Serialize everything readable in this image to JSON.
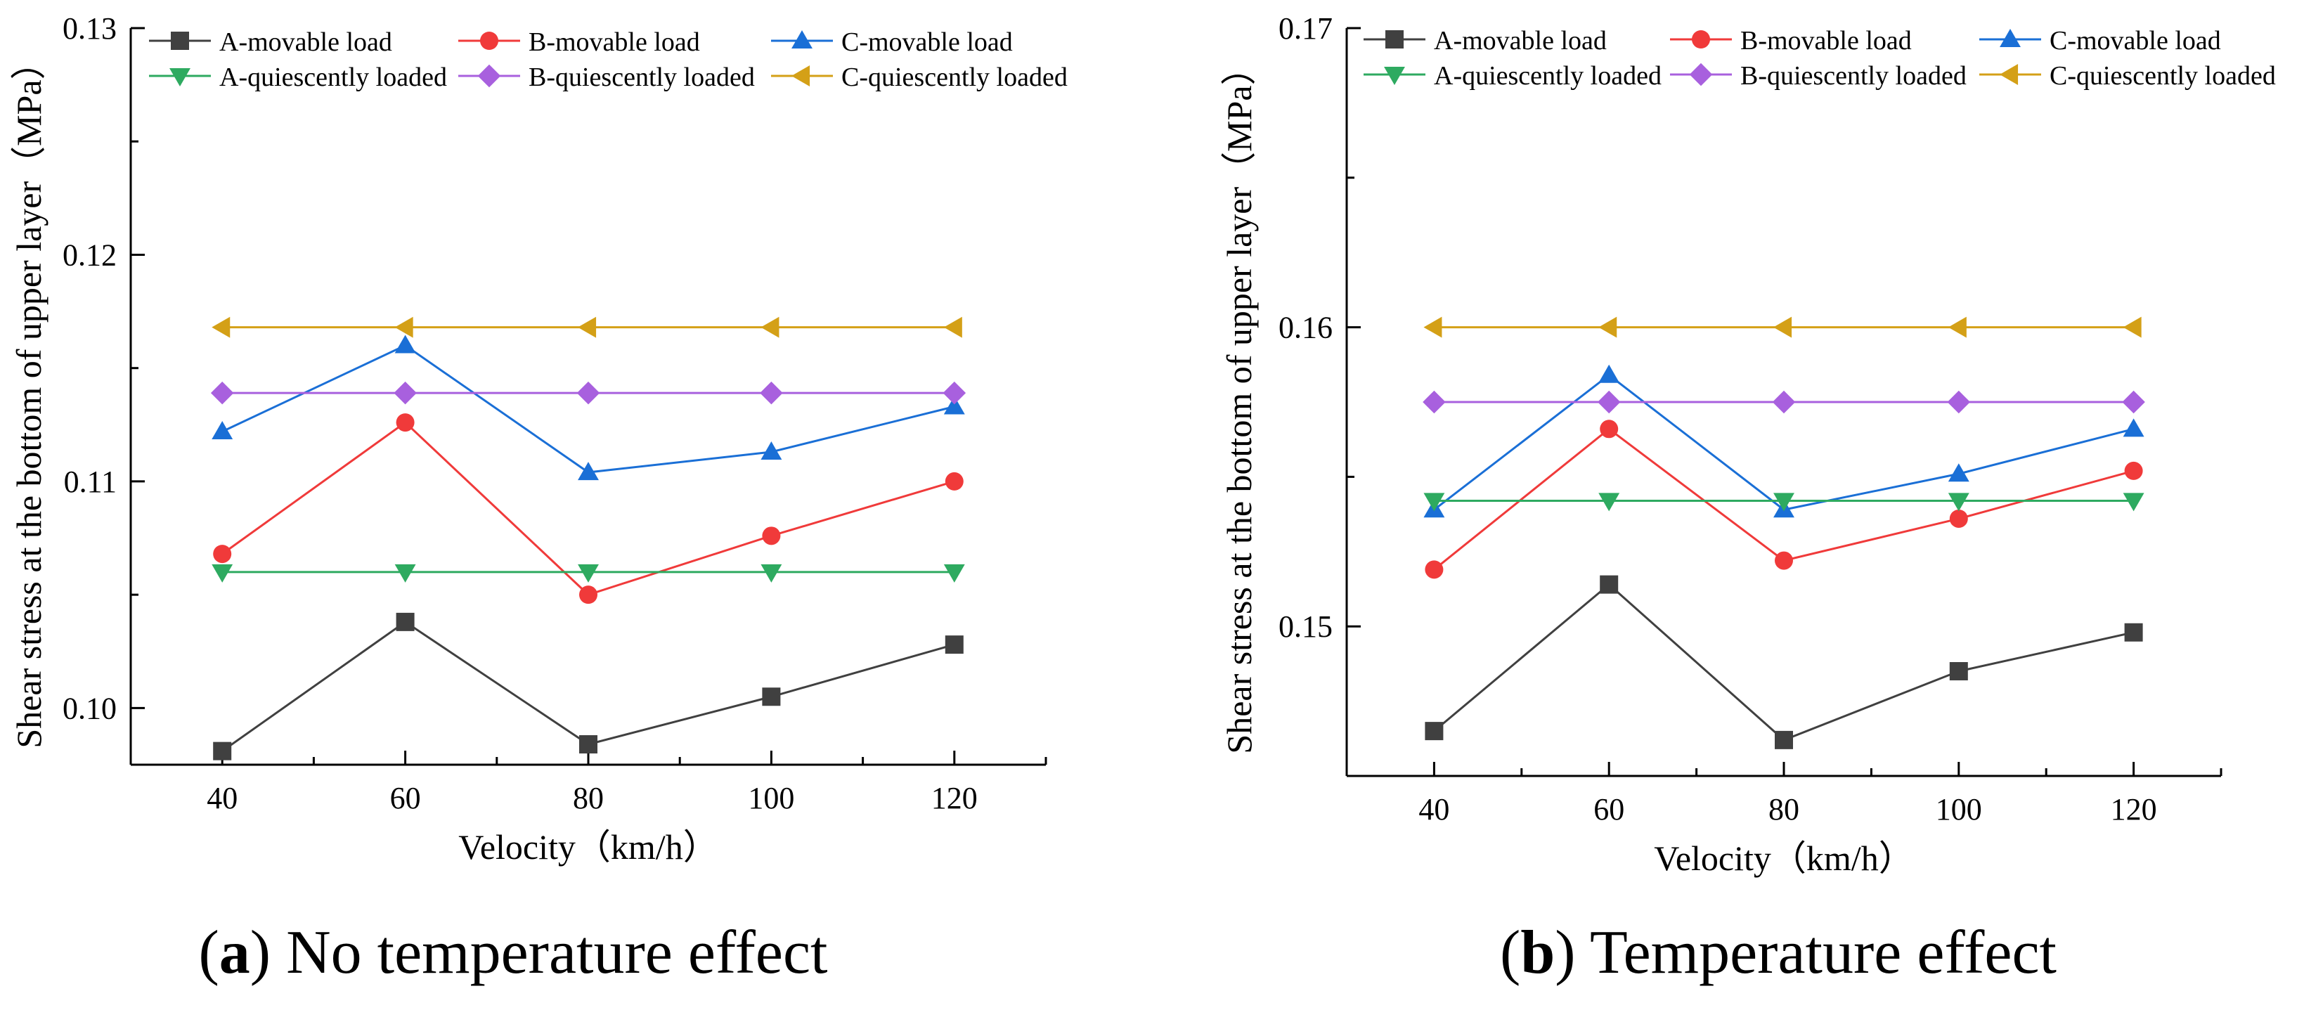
{
  "chart_data": [
    {
      "type": "line",
      "panel_id": "a",
      "caption": {
        "open": "(",
        "letter": "a",
        "close": ")",
        "text": " No temperature effect"
      },
      "xlabel": "Velocity（km/h）",
      "ylabel": "Shear stress at the bottom of upper layer（MPa）",
      "x": [
        40,
        60,
        80,
        100,
        120
      ],
      "x_ticks": [
        40,
        60,
        80,
        100,
        120
      ],
      "x_tick_labels": [
        "40",
        "60",
        "80",
        "100",
        "120"
      ],
      "xlim": [
        30,
        130
      ],
      "y_ticks": [
        0.1,
        0.11,
        0.12,
        0.13
      ],
      "y_tick_labels": [
        "0.10",
        "0.11",
        "0.12",
        "0.13"
      ],
      "ylim": [
        0.0975,
        0.13
      ],
      "legend_position": "top",
      "series": [
        {
          "name": "A-movable load",
          "marker": "square",
          "color": "#404040",
          "values": [
            0.0981,
            0.1038,
            0.0984,
            0.1005,
            0.1028
          ]
        },
        {
          "name": "B-movable load",
          "marker": "circle",
          "color": "#f03a3a",
          "values": [
            0.1068,
            0.1126,
            0.105,
            0.1076,
            0.11
          ]
        },
        {
          "name": "C-movable load",
          "marker": "triangle-up",
          "color": "#1a6fd6",
          "values": [
            0.1122,
            0.116,
            0.1104,
            0.1113,
            0.1133
          ]
        },
        {
          "name": "A-quiescently loaded",
          "marker": "triangle-down",
          "color": "#2eaa60",
          "values": [
            0.106,
            0.106,
            0.106,
            0.106,
            0.106
          ]
        },
        {
          "name": "B-quiescently loaded",
          "marker": "diamond",
          "color": "#a860de",
          "values": [
            0.1139,
            0.1139,
            0.1139,
            0.1139,
            0.1139
          ]
        },
        {
          "name": "C-quiescently loaded",
          "marker": "triangle-left",
          "color": "#d4a017",
          "values": [
            0.1168,
            0.1168,
            0.1168,
            0.1168,
            0.1168
          ]
        }
      ]
    },
    {
      "type": "line",
      "panel_id": "b",
      "caption": {
        "open": "(",
        "letter": "b",
        "close": ")",
        "text": " Temperature effect"
      },
      "xlabel": "Velocity（km/h）",
      "ylabel": "Shear stress at the bottom of upper layer（MPa）",
      "x": [
        40,
        60,
        80,
        100,
        120
      ],
      "x_ticks": [
        40,
        60,
        80,
        100,
        120
      ],
      "x_tick_labels": [
        "40",
        "60",
        "80",
        "100",
        "120"
      ],
      "xlim": [
        30,
        130
      ],
      "y_ticks": [
        0.15,
        0.16,
        0.17
      ],
      "y_tick_labels": [
        "0.15",
        "0.16",
        "0.17"
      ],
      "ylim": [
        0.145,
        0.17
      ],
      "legend_position": "top",
      "series": [
        {
          "name": "A-movable load",
          "marker": "square",
          "color": "#404040",
          "values": [
            0.1465,
            0.1514,
            0.1462,
            0.1485,
            0.1498
          ]
        },
        {
          "name": "B-movable load",
          "marker": "circle",
          "color": "#f03a3a",
          "values": [
            0.1519,
            0.1566,
            0.1522,
            0.1536,
            0.1552
          ]
        },
        {
          "name": "C-movable load",
          "marker": "triangle-up",
          "color": "#1a6fd6",
          "values": [
            0.1539,
            0.1584,
            0.1539,
            0.1551,
            0.1566
          ]
        },
        {
          "name": "A-quiescently loaded",
          "marker": "triangle-down",
          "color": "#2eaa60",
          "values": [
            0.1542,
            0.1542,
            0.1542,
            0.1542,
            0.1542
          ]
        },
        {
          "name": "B-quiescently loaded",
          "marker": "diamond",
          "color": "#a860de",
          "values": [
            0.1575,
            0.1575,
            0.1575,
            0.1575,
            0.1575
          ]
        },
        {
          "name": "C-quiescently loaded",
          "marker": "triangle-left",
          "color": "#d4a017",
          "values": [
            0.16,
            0.16,
            0.16,
            0.16,
            0.16
          ]
        }
      ]
    }
  ]
}
